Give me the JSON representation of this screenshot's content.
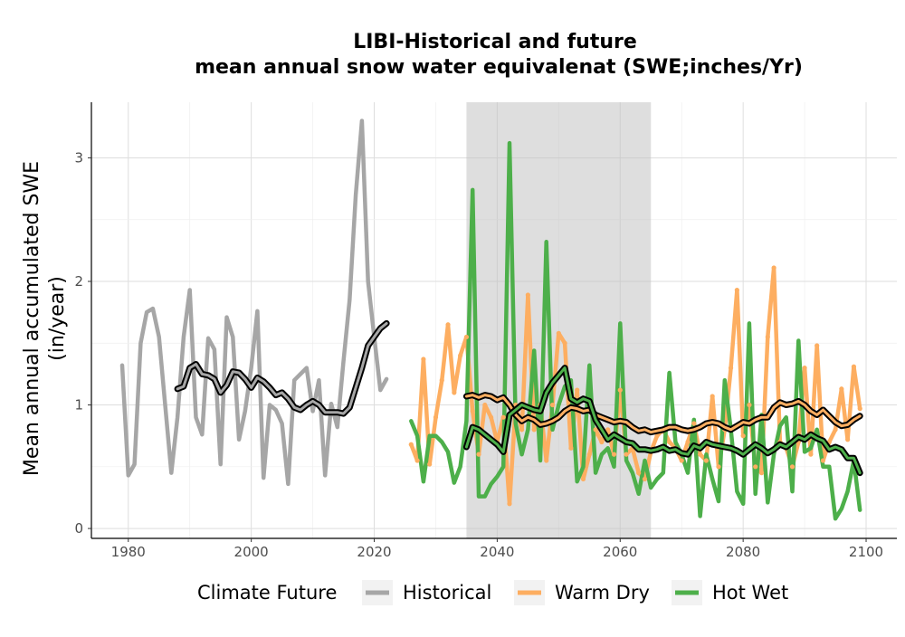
{
  "chart_data": {
    "type": "line",
    "title_line1": "LIBI-Historical and future",
    "title_line2": "mean annual snow water equivalenat (SWE;inches/Yr)",
    "xlabel": "",
    "ylabel_line1": "Mean annual accumulated SWE",
    "ylabel_line2": "(in/year)",
    "xlim": [
      1974,
      2105
    ],
    "ylim": [
      -0.08,
      3.45
    ],
    "x_ticks": [
      1980,
      2000,
      2020,
      2040,
      2060,
      2080,
      2100
    ],
    "y_ticks": [
      0,
      1,
      2,
      3
    ],
    "grid": true,
    "shaded_period": [
      2035,
      2065
    ],
    "legend": {
      "title": "Climate Future",
      "placement": "bottom",
      "entries": [
        "Historical",
        "Warm Dry",
        "Hot Wet"
      ]
    },
    "series": [
      {
        "name": "Historical",
        "color": "#a6a6a6",
        "x": [
          1979,
          1980,
          1981,
          1982,
          1983,
          1984,
          1985,
          1986,
          1987,
          1988,
          1989,
          1990,
          1991,
          1992,
          1993,
          1994,
          1995,
          1996,
          1997,
          1998,
          1999,
          2000,
          2001,
          2002,
          2003,
          2004,
          2005,
          2006,
          2007,
          2008,
          2009,
          2010,
          2011,
          2012,
          2013,
          2014,
          2015,
          2016,
          2017,
          2018,
          2019,
          2020,
          2021,
          2022
        ],
        "y": [
          1.32,
          0.43,
          0.52,
          1.5,
          1.75,
          1.78,
          1.55,
          1.0,
          0.45,
          0.9,
          1.55,
          1.93,
          0.9,
          0.76,
          1.54,
          1.45,
          0.52,
          1.71,
          1.55,
          0.72,
          0.95,
          1.3,
          1.76,
          0.41,
          1.0,
          0.96,
          0.85,
          0.36,
          1.2,
          1.25,
          1.3,
          0.95,
          1.2,
          0.43,
          1.01,
          0.82,
          1.35,
          1.85,
          2.7,
          3.3,
          2.0,
          1.55,
          1.12,
          1.21
        ],
        "smooth_x": [
          1988,
          1989,
          1990,
          1991,
          1992,
          1993,
          1994,
          1995,
          1996,
          1997,
          1998,
          1999,
          2000,
          2001,
          2002,
          2003,
          2004,
          2005,
          2006,
          2007,
          2008,
          2009,
          2010,
          2011,
          2012,
          2013,
          2014,
          2015,
          2016,
          2017,
          2018,
          2019,
          2020,
          2021,
          2022
        ],
        "smooth_y": [
          1.13,
          1.15,
          1.3,
          1.33,
          1.25,
          1.24,
          1.21,
          1.1,
          1.16,
          1.27,
          1.26,
          1.21,
          1.14,
          1.22,
          1.19,
          1.14,
          1.08,
          1.1,
          1.05,
          0.98,
          0.96,
          1.0,
          1.03,
          1.0,
          0.94,
          0.94,
          0.94,
          0.93,
          0.98,
          1.14,
          1.3,
          1.48,
          1.55,
          1.62,
          1.66
        ]
      },
      {
        "name": "Warm Dry",
        "color": "#fdae61",
        "x": [
          2026,
          2027,
          2028,
          2029,
          2030,
          2031,
          2032,
          2033,
          2034,
          2035,
          2036,
          2037,
          2038,
          2039,
          2040,
          2041,
          2042,
          2043,
          2044,
          2045,
          2046,
          2047,
          2048,
          2049,
          2050,
          2051,
          2052,
          2053,
          2054,
          2055,
          2056,
          2057,
          2058,
          2059,
          2060,
          2061,
          2062,
          2063,
          2064,
          2065,
          2066,
          2067,
          2068,
          2069,
          2070,
          2071,
          2072,
          2073,
          2074,
          2075,
          2076,
          2077,
          2078,
          2079,
          2080,
          2081,
          2082,
          2083,
          2084,
          2085,
          2086,
          2087,
          2088,
          2089,
          2090,
          2091,
          2092,
          2093,
          2094,
          2095,
          2096,
          2097,
          2098,
          2099
        ],
        "y": [
          0.68,
          0.55,
          1.37,
          0.52,
          0.9,
          1.2,
          1.65,
          1.1,
          1.4,
          1.55,
          0.95,
          0.6,
          1.0,
          0.9,
          0.7,
          0.9,
          0.2,
          1.0,
          0.8,
          1.89,
          0.8,
          1.0,
          0.55,
          1.0,
          1.58,
          1.5,
          0.65,
          1.12,
          0.4,
          0.6,
          0.8,
          0.7,
          0.8,
          0.6,
          1.12,
          0.6,
          0.65,
          0.45,
          0.4,
          0.62,
          0.75,
          0.8,
          0.7,
          0.65,
          0.55,
          0.7,
          0.85,
          0.6,
          0.55,
          1.07,
          0.5,
          0.8,
          1.3,
          1.93,
          0.75,
          1.0,
          0.5,
          0.45,
          1.55,
          2.11,
          0.7,
          0.65,
          0.5,
          0.7,
          1.3,
          0.6,
          1.48,
          0.55,
          0.7,
          0.8,
          1.13,
          0.72,
          1.31,
          0.97
        ],
        "smooth_x": [
          2035,
          2036,
          2037,
          2038,
          2039,
          2040,
          2041,
          2042,
          2043,
          2044,
          2045,
          2046,
          2047,
          2048,
          2049,
          2050,
          2051,
          2052,
          2053,
          2054,
          2055,
          2056,
          2057,
          2058,
          2059,
          2060,
          2061,
          2062,
          2063,
          2064,
          2065,
          2066,
          2067,
          2068,
          2069,
          2070,
          2071,
          2072,
          2073,
          2074,
          2075,
          2076,
          2077,
          2078,
          2079,
          2080,
          2081,
          2082,
          2083,
          2084,
          2085,
          2086,
          2087,
          2088,
          2089,
          2090,
          2091,
          2092,
          2093,
          2094,
          2095,
          2096,
          2097,
          2098,
          2099
        ],
        "smooth_y": [
          1.07,
          1.08,
          1.06,
          1.08,
          1.07,
          1.04,
          1.06,
          1.0,
          0.92,
          0.87,
          0.9,
          0.88,
          0.84,
          0.85,
          0.87,
          0.9,
          0.95,
          0.98,
          0.97,
          0.95,
          0.96,
          0.92,
          0.9,
          0.88,
          0.86,
          0.87,
          0.86,
          0.82,
          0.79,
          0.8,
          0.78,
          0.79,
          0.8,
          0.82,
          0.82,
          0.8,
          0.79,
          0.8,
          0.82,
          0.85,
          0.86,
          0.85,
          0.82,
          0.8,
          0.83,
          0.86,
          0.85,
          0.88,
          0.9,
          0.9,
          0.98,
          1.02,
          1.0,
          1.01,
          1.03,
          1.0,
          0.95,
          0.92,
          0.96,
          0.91,
          0.86,
          0.83,
          0.84,
          0.88,
          0.91
        ]
      },
      {
        "name": "Hot Wet",
        "color": "#4daf4a",
        "x": [
          2026,
          2027,
          2028,
          2029,
          2030,
          2031,
          2032,
          2033,
          2034,
          2035,
          2036,
          2037,
          2038,
          2039,
          2040,
          2041,
          2042,
          2043,
          2044,
          2045,
          2046,
          2047,
          2048,
          2049,
          2050,
          2051,
          2052,
          2053,
          2054,
          2055,
          2056,
          2057,
          2058,
          2059,
          2060,
          2061,
          2062,
          2063,
          2064,
          2065,
          2066,
          2067,
          2068,
          2069,
          2070,
          2071,
          2072,
          2073,
          2074,
          2075,
          2076,
          2077,
          2078,
          2079,
          2080,
          2081,
          2082,
          2083,
          2084,
          2085,
          2086,
          2087,
          2088,
          2089,
          2090,
          2091,
          2092,
          2093,
          2094,
          2095,
          2096,
          2097,
          2098,
          2099
        ],
        "y": [
          0.87,
          0.75,
          0.38,
          0.75,
          0.75,
          0.7,
          0.62,
          0.37,
          0.5,
          0.87,
          2.74,
          0.26,
          0.26,
          0.36,
          0.42,
          0.5,
          3.12,
          0.85,
          0.6,
          0.8,
          1.44,
          0.55,
          2.32,
          0.8,
          1.0,
          1.15,
          1.2,
          0.38,
          0.5,
          1.32,
          0.45,
          0.6,
          0.65,
          0.5,
          1.66,
          0.55,
          0.45,
          0.28,
          0.55,
          0.33,
          0.4,
          0.45,
          1.26,
          0.7,
          0.6,
          0.45,
          0.88,
          0.1,
          0.6,
          0.4,
          0.22,
          1.2,
          0.8,
          0.3,
          0.2,
          1.66,
          0.28,
          0.92,
          0.21,
          0.6,
          0.83,
          0.9,
          0.3,
          1.52,
          0.62,
          0.65,
          0.8,
          0.5,
          0.5,
          0.08,
          0.16,
          0.3,
          0.55,
          0.15
        ],
        "smooth_x": [
          2035,
          2036,
          2037,
          2038,
          2039,
          2040,
          2041,
          2042,
          2043,
          2044,
          2045,
          2046,
          2047,
          2048,
          2049,
          2050,
          2051,
          2052,
          2053,
          2054,
          2055,
          2056,
          2057,
          2058,
          2059,
          2060,
          2061,
          2062,
          2063,
          2064,
          2065,
          2066,
          2067,
          2068,
          2069,
          2070,
          2071,
          2072,
          2073,
          2074,
          2075,
          2076,
          2077,
          2078,
          2079,
          2080,
          2081,
          2082,
          2083,
          2084,
          2085,
          2086,
          2087,
          2088,
          2089,
          2090,
          2091,
          2092,
          2093,
          2094,
          2095,
          2096,
          2097,
          2098,
          2099
        ],
        "smooth_y": [
          0.66,
          0.82,
          0.8,
          0.76,
          0.72,
          0.68,
          0.62,
          0.92,
          0.96,
          1.0,
          0.98,
          0.96,
          0.95,
          1.1,
          1.18,
          1.24,
          1.3,
          1.05,
          1.02,
          1.05,
          1.03,
          0.88,
          0.8,
          0.72,
          0.76,
          0.73,
          0.7,
          0.69,
          0.64,
          0.64,
          0.63,
          0.64,
          0.66,
          0.63,
          0.64,
          0.61,
          0.6,
          0.67,
          0.65,
          0.7,
          0.68,
          0.67,
          0.66,
          0.65,
          0.63,
          0.6,
          0.64,
          0.68,
          0.65,
          0.61,
          0.64,
          0.68,
          0.66,
          0.7,
          0.74,
          0.72,
          0.76,
          0.73,
          0.71,
          0.64,
          0.66,
          0.64,
          0.57,
          0.57,
          0.45
        ]
      }
    ]
  }
}
